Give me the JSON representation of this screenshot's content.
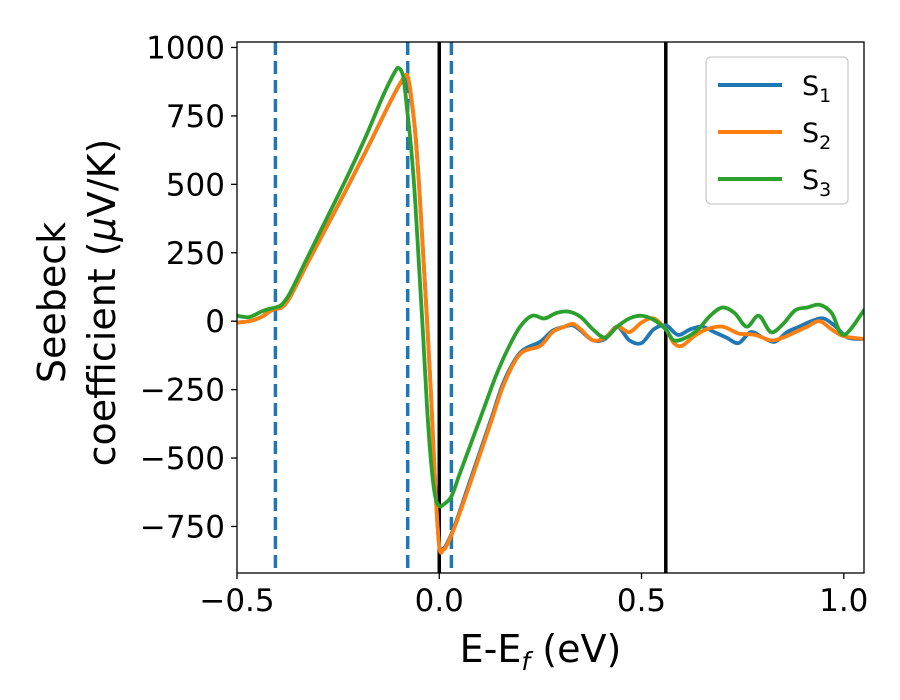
{
  "chart_data": {
    "type": "line",
    "xlabel": {
      "main": "E-E",
      "sub": "f",
      "suffix": " (eV)"
    },
    "ylabel": {
      "line1": "Seebeck",
      "line2_prefix": "coefficient  (",
      "mu": "μ",
      "line2_suffix": "V/K)"
    },
    "xlim": [
      -0.5,
      1.05
    ],
    "ylim": [
      -920,
      1020
    ],
    "x_ticks": [
      {
        "value": -0.5,
        "label": "−0.5"
      },
      {
        "value": 0.0,
        "label": "0.0"
      },
      {
        "value": 0.5,
        "label": "0.5"
      },
      {
        "value": 1.0,
        "label": "1.0"
      }
    ],
    "y_ticks": [
      {
        "value": 1000,
        "label": "1000"
      },
      {
        "value": 750,
        "label": "750"
      },
      {
        "value": 500,
        "label": "500"
      },
      {
        "value": 250,
        "label": "250"
      },
      {
        "value": 0,
        "label": "0"
      },
      {
        "value": -250,
        "label": "−250"
      },
      {
        "value": -500,
        "label": "−500"
      },
      {
        "value": -750,
        "label": "−750"
      }
    ],
    "vlines": [
      {
        "x": -0.405,
        "style": "dashed",
        "color": "#1f77b4"
      },
      {
        "x": -0.078,
        "style": "dashed",
        "color": "#1f77b4"
      },
      {
        "x": 0.03,
        "style": "dashed",
        "color": "#1f77b4"
      },
      {
        "x": 0.0,
        "style": "solid",
        "color": "#000000"
      },
      {
        "x": 0.56,
        "style": "solid",
        "color": "#000000"
      }
    ],
    "legend": {
      "position": "top-right"
    },
    "series": [
      {
        "name": "S",
        "sub": "1",
        "color": "#1f77b4",
        "x": [
          -0.5,
          -0.47,
          -0.44,
          -0.42,
          -0.405,
          -0.39,
          -0.37,
          -0.33,
          -0.28,
          -0.23,
          -0.18,
          -0.13,
          -0.1,
          -0.085,
          -0.078,
          -0.07,
          -0.06,
          -0.05,
          -0.04,
          -0.03,
          -0.02,
          -0.01,
          0.0,
          0.01,
          0.02,
          0.04,
          0.07,
          0.1,
          0.13,
          0.16,
          0.2,
          0.25,
          0.28,
          0.31,
          0.33,
          0.35,
          0.38,
          0.41,
          0.44,
          0.47,
          0.5,
          0.53,
          0.56,
          0.59,
          0.62,
          0.65,
          0.68,
          0.71,
          0.74,
          0.77,
          0.8,
          0.83,
          0.86,
          0.89,
          0.92,
          0.95,
          0.98,
          1.01,
          1.05
        ],
        "y": [
          -5,
          0,
          15,
          35,
          45,
          50,
          85,
          200,
          340,
          480,
          625,
          775,
          860,
          885,
          880,
          820,
          700,
          500,
          250,
          0,
          -280,
          -600,
          -820,
          -830,
          -810,
          -740,
          -610,
          -480,
          -350,
          -220,
          -115,
          -75,
          -35,
          -20,
          -15,
          -35,
          -70,
          -65,
          -20,
          -70,
          -80,
          -30,
          -15,
          -50,
          -30,
          -20,
          -40,
          -60,
          -80,
          -40,
          -60,
          -75,
          -40,
          -20,
          0,
          10,
          -20,
          -60,
          -65
        ]
      },
      {
        "name": "S",
        "sub": "2",
        "color": "#ff7f0e",
        "x": [
          -0.5,
          -0.47,
          -0.44,
          -0.42,
          -0.405,
          -0.39,
          -0.37,
          -0.33,
          -0.28,
          -0.23,
          -0.18,
          -0.13,
          -0.1,
          -0.085,
          -0.078,
          -0.07,
          -0.06,
          -0.05,
          -0.04,
          -0.03,
          -0.02,
          -0.01,
          0.0,
          0.01,
          0.02,
          0.04,
          0.07,
          0.1,
          0.13,
          0.16,
          0.2,
          0.25,
          0.28,
          0.31,
          0.33,
          0.35,
          0.38,
          0.41,
          0.44,
          0.47,
          0.5,
          0.53,
          0.56,
          0.58,
          0.6,
          0.63,
          0.66,
          0.7,
          0.74,
          0.78,
          0.82,
          0.85,
          0.88,
          0.91,
          0.94,
          0.97,
          1.0,
          1.05
        ],
        "y": [
          -5,
          0,
          15,
          35,
          45,
          50,
          85,
          200,
          340,
          480,
          625,
          775,
          860,
          895,
          895,
          830,
          700,
          500,
          250,
          0,
          -280,
          -600,
          -825,
          -835,
          -815,
          -745,
          -620,
          -490,
          -360,
          -230,
          -120,
          -90,
          -40,
          -20,
          -10,
          -30,
          -70,
          -60,
          -20,
          -40,
          -5,
          10,
          -30,
          -80,
          -90,
          -55,
          -30,
          -20,
          -45,
          -50,
          -70,
          -60,
          -40,
          -20,
          0,
          -30,
          -55,
          -65
        ]
      },
      {
        "name": "S",
        "sub": "3",
        "color": "#2ca02c",
        "x": [
          -0.5,
          -0.47,
          -0.44,
          -0.42,
          -0.405,
          -0.39,
          -0.37,
          -0.33,
          -0.28,
          -0.23,
          -0.18,
          -0.14,
          -0.11,
          -0.1,
          -0.09,
          -0.085,
          -0.08,
          -0.07,
          -0.06,
          -0.05,
          -0.04,
          -0.03,
          -0.02,
          -0.01,
          0.0,
          0.01,
          0.03,
          0.05,
          0.08,
          0.11,
          0.14,
          0.17,
          0.2,
          0.23,
          0.26,
          0.29,
          0.32,
          0.35,
          0.38,
          0.41,
          0.44,
          0.47,
          0.5,
          0.53,
          0.56,
          0.58,
          0.61,
          0.64,
          0.67,
          0.7,
          0.73,
          0.76,
          0.79,
          0.82,
          0.85,
          0.88,
          0.91,
          0.94,
          0.97,
          1.0,
          1.05
        ],
        "y": [
          20,
          15,
          35,
          45,
          50,
          60,
          100,
          220,
          370,
          520,
          680,
          820,
          910,
          925,
          900,
          850,
          780,
          640,
          450,
          200,
          -50,
          -320,
          -520,
          -640,
          -675,
          -670,
          -640,
          -560,
          -440,
          -320,
          -200,
          -100,
          -20,
          20,
          10,
          30,
          35,
          15,
          -30,
          -60,
          -20,
          10,
          20,
          5,
          -30,
          -70,
          -60,
          -30,
          20,
          50,
          30,
          -20,
          20,
          -40,
          -10,
          40,
          50,
          60,
          30,
          -50,
          40
        ]
      }
    ]
  }
}
